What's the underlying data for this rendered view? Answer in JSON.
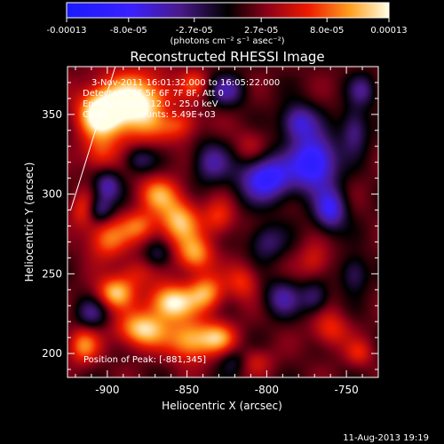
{
  "chart_data": {
    "type": "heatmap",
    "title": "Reconstructed RHESSI Image",
    "xlabel": "Heliocentric X (arcsec)",
    "ylabel": "Heliocentric Y (arcsec)",
    "xlim": [
      -925,
      -730
    ],
    "ylim": [
      185,
      380
    ],
    "x_ticks": [
      -900,
      -850,
      -800,
      -750
    ],
    "y_ticks": [
      200,
      250,
      300,
      350
    ],
    "x_tick_labels": [
      "-900",
      "-850",
      "-800",
      "-750"
    ],
    "y_tick_labels": [
      "200",
      "250",
      "300",
      "350"
    ],
    "colorbar": {
      "range": [
        -0.00013,
        0.00013
      ],
      "tick_labels": [
        "-0.00013",
        "-8.0e-05",
        "-2.7e-05",
        "2.7e-05",
        "8.0e-05",
        "0.00013"
      ],
      "tick_values": [
        -0.00013,
        -8e-05,
        -2.7e-05,
        2.7e-05,
        8e-05,
        0.00013
      ],
      "units_label": "(photons cm⁻² s⁻¹ asec⁻²)"
    },
    "annotations": {
      "time_range": "3-Nov-2011 16:01:32.000 to 16:05:22.000",
      "detectors": "Detectors: 4F 5F 6F 7F 8F, Att 0",
      "energy": "Energy Range: 12.0 - 25.0 keV",
      "clean": "Clean          counts: 5.49E+03",
      "peak": "Position of Peak: [-881,345]"
    },
    "limb_line": {
      "x": [
        -923,
        -895
      ],
      "y": [
        290,
        380
      ]
    },
    "peak": {
      "x": -881,
      "y": 345
    },
    "features": [
      {
        "x": -883,
        "y": 355,
        "value": 0.00013,
        "sx": 18,
        "sy": 14
      },
      {
        "x": -905,
        "y": 350,
        "value": 9e-05,
        "sx": 9,
        "sy": 10
      },
      {
        "x": -855,
        "y": 345,
        "value": 6e-05,
        "sx": 8,
        "sy": 7
      },
      {
        "x": -905,
        "y": 325,
        "value": 5e-05,
        "sx": 8,
        "sy": 8
      },
      {
        "x": -868,
        "y": 300,
        "value": 7e-05,
        "sx": 9,
        "sy": 8
      },
      {
        "x": -855,
        "y": 283,
        "value": 9e-05,
        "sx": 9,
        "sy": 10
      },
      {
        "x": -880,
        "y": 280,
        "value": 6e-05,
        "sx": 8,
        "sy": 7
      },
      {
        "x": -900,
        "y": 272,
        "value": 7e-05,
        "sx": 9,
        "sy": 9
      },
      {
        "x": -845,
        "y": 262,
        "value": 8e-05,
        "sx": 8,
        "sy": 8
      },
      {
        "x": -883,
        "y": 250,
        "value": 4e-05,
        "sx": 8,
        "sy": 7
      },
      {
        "x": -895,
        "y": 238,
        "value": 9e-05,
        "sx": 8,
        "sy": 7
      },
      {
        "x": -860,
        "y": 232,
        "value": 0.00011,
        "sx": 10,
        "sy": 8
      },
      {
        "x": -838,
        "y": 238,
        "value": 8e-05,
        "sx": 8,
        "sy": 8
      },
      {
        "x": -878,
        "y": 215,
        "value": 0.0001,
        "sx": 11,
        "sy": 8
      },
      {
        "x": -848,
        "y": 208,
        "value": 9e-05,
        "sx": 10,
        "sy": 9
      },
      {
        "x": -830,
        "y": 210,
        "value": 7e-05,
        "sx": 8,
        "sy": 7
      },
      {
        "x": -915,
        "y": 205,
        "value": 7e-05,
        "sx": 7,
        "sy": 8
      },
      {
        "x": -915,
        "y": 290,
        "value": 5e-05,
        "sx": 6,
        "sy": 8
      },
      {
        "x": -810,
        "y": 330,
        "value": 3e-05,
        "sx": 7,
        "sy": 8
      },
      {
        "x": -830,
        "y": 285,
        "value": 5e-05,
        "sx": 7,
        "sy": 8
      },
      {
        "x": -815,
        "y": 245,
        "value": 5e-05,
        "sx": 7,
        "sy": 8
      },
      {
        "x": -808,
        "y": 195,
        "value": 4e-05,
        "sx": 8,
        "sy": 6
      },
      {
        "x": -770,
        "y": 258,
        "value": 4e-05,
        "sx": 7,
        "sy": 8
      },
      {
        "x": -760,
        "y": 215,
        "value": 5e-05,
        "sx": 8,
        "sy": 8
      },
      {
        "x": -742,
        "y": 200,
        "value": 4e-05,
        "sx": 6,
        "sy": 6
      },
      {
        "x": -845,
        "y": 370,
        "value": 4e-05,
        "sx": 6,
        "sy": 6
      },
      {
        "x": -800,
        "y": 310,
        "value": -0.00011,
        "sx": 12,
        "sy": 10
      },
      {
        "x": -770,
        "y": 320,
        "value": -0.00012,
        "sx": 10,
        "sy": 12
      },
      {
        "x": -760,
        "y": 290,
        "value": -9e-05,
        "sx": 7,
        "sy": 9
      },
      {
        "x": -780,
        "y": 345,
        "value": -8e-05,
        "sx": 8,
        "sy": 8
      },
      {
        "x": -745,
        "y": 340,
        "value": -6e-05,
        "sx": 6,
        "sy": 10
      },
      {
        "x": -835,
        "y": 320,
        "value": -6e-05,
        "sx": 8,
        "sy": 9
      },
      {
        "x": -880,
        "y": 322,
        "value": -5e-05,
        "sx": 7,
        "sy": 6
      },
      {
        "x": -900,
        "y": 305,
        "value": -7e-05,
        "sx": 6,
        "sy": 7
      },
      {
        "x": -905,
        "y": 290,
        "value": -6e-05,
        "sx": 6,
        "sy": 6
      },
      {
        "x": -860,
        "y": 350,
        "value": -5e-05,
        "sx": 8,
        "sy": 7
      },
      {
        "x": -825,
        "y": 365,
        "value": -6e-05,
        "sx": 8,
        "sy": 7
      },
      {
        "x": -800,
        "y": 270,
        "value": -5e-05,
        "sx": 8,
        "sy": 8
      },
      {
        "x": -790,
        "y": 235,
        "value": -6e-05,
        "sx": 8,
        "sy": 8
      },
      {
        "x": -770,
        "y": 235,
        "value": -5e-05,
        "sx": 6,
        "sy": 7
      },
      {
        "x": -868,
        "y": 262,
        "value": -4e-05,
        "sx": 6,
        "sy": 6
      },
      {
        "x": -910,
        "y": 225,
        "value": -5e-05,
        "sx": 7,
        "sy": 7
      },
      {
        "x": -820,
        "y": 195,
        "value": -4e-05,
        "sx": 7,
        "sy": 6
      },
      {
        "x": -745,
        "y": 250,
        "value": -5e-05,
        "sx": 6,
        "sy": 8
      },
      {
        "x": -740,
        "y": 365,
        "value": -5e-05,
        "sx": 6,
        "sy": 7
      }
    ]
  },
  "footer": {
    "date": "11-Aug-2013 19:19"
  }
}
